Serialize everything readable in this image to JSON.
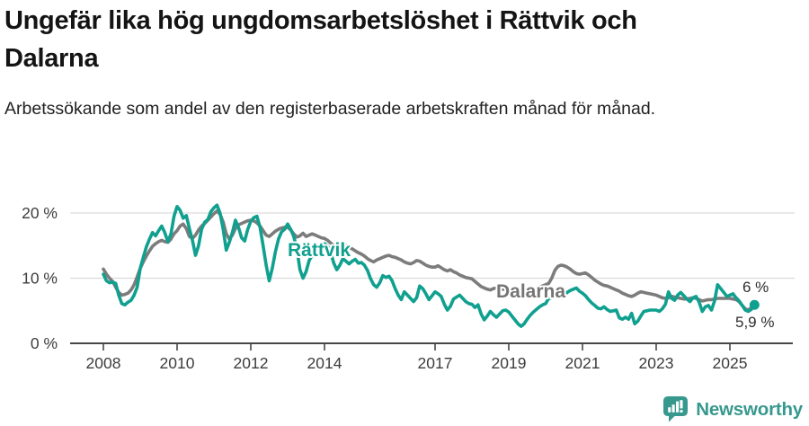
{
  "header": {
    "title_line1": "Ungefär lika hög ungdomsarbetslöshet i Rättvik och",
    "title_line2": "Dalarna",
    "subtitle": "Arbetssökande som andel av den registerbaserade arbetskraften månad för månad."
  },
  "chart_data": {
    "type": "line",
    "x_start_year": 2008,
    "x_step_months": 1,
    "x_end": "2025-09",
    "x_tick_years": [
      2008,
      2010,
      2012,
      2014,
      2017,
      2019,
      2021,
      2023,
      2025
    ],
    "y_ticks": [
      {
        "value": 0,
        "label": "0 %"
      },
      {
        "value": 10,
        "label": "10 %"
      },
      {
        "value": 20,
        "label": "20 %"
      }
    ],
    "ylim": [
      0,
      22.5
    ],
    "grid": "horizontal-only",
    "legend_position": "inline-labels",
    "series": [
      {
        "name": "Dalarna",
        "label": "Dalarna",
        "color": "#7c7c7c",
        "end_label": "6 %",
        "values": [
          11.4,
          10.6,
          10.0,
          9.5,
          8.6,
          7.8,
          7.4,
          7.5,
          7.7,
          8.2,
          9.0,
          10.2,
          11.5,
          12.5,
          13.4,
          14.2,
          14.9,
          15.3,
          15.6,
          15.8,
          15.6,
          15.5,
          16.0,
          16.8,
          17.3,
          18.0,
          18.3,
          17.6,
          16.4,
          16.1,
          16.6,
          17.4,
          18.0,
          18.4,
          18.9,
          19.4,
          19.9,
          20.3,
          19.8,
          18.6,
          16.8,
          16.0,
          16.6,
          17.6,
          18.2,
          18.4,
          18.6,
          18.8,
          18.9,
          18.8,
          18.5,
          18.0,
          17.3,
          16.6,
          16.4,
          16.8,
          17.2,
          17.5,
          17.7,
          17.8,
          17.8,
          17.4,
          16.8,
          16.3,
          16.5,
          16.9,
          16.4,
          16.6,
          16.8,
          16.6,
          16.4,
          16.2,
          16.1,
          15.8,
          15.4,
          15.0,
          14.8,
          15.0,
          15.2,
          15.0,
          14.7,
          14.5,
          14.2,
          13.9,
          13.7,
          13.4,
          13.0,
          12.7,
          12.5,
          12.8,
          13.0,
          13.2,
          13.4,
          13.5,
          13.3,
          13.2,
          13.0,
          12.8,
          12.5,
          12.3,
          12.2,
          12.4,
          12.7,
          12.6,
          12.3,
          12.0,
          11.8,
          11.7,
          11.7,
          11.9,
          11.6,
          11.3,
          11.1,
          11.3,
          11.0,
          10.8,
          10.5,
          10.3,
          10.1,
          10.0,
          9.9,
          9.5,
          9.1,
          8.7,
          8.5,
          8.3,
          8.2,
          8.4,
          8.5,
          8.4,
          8.3,
          8.3,
          8.2,
          8.0,
          7.8,
          7.7,
          7.6,
          7.8,
          8.0,
          8.1,
          8.2,
          8.4,
          8.6,
          8.8,
          9.0,
          9.2,
          10.0,
          11.2,
          11.8,
          12.0,
          11.9,
          11.7,
          11.4,
          11.0,
          10.7,
          10.6,
          10.7,
          10.8,
          10.5,
          10.1,
          9.7,
          9.4,
          9.1,
          8.9,
          8.8,
          8.6,
          8.4,
          8.2,
          8.0,
          7.7,
          7.5,
          7.3,
          7.2,
          7.4,
          7.7,
          7.9,
          7.8,
          7.7,
          7.6,
          7.5,
          7.4,
          7.2,
          7.0,
          6.9,
          7.0,
          7.2,
          7.1,
          7.0,
          6.9,
          6.8,
          6.8,
          6.9,
          7.0,
          6.9,
          6.7,
          6.5,
          6.6,
          6.7,
          6.7,
          6.8,
          6.9,
          6.9,
          6.9,
          6.9,
          6.9,
          6.8,
          6.7,
          6.4,
          5.8,
          5.3,
          5.1,
          5.5,
          6.0
        ]
      },
      {
        "name": "Rättvik",
        "label": "Rättvik",
        "color": "#10a08f",
        "end_label": "5,9 %",
        "end_dot": true,
        "dashed_segment": {
          "from_index": 146,
          "to_index": 150
        },
        "values": [
          10.6,
          9.6,
          9.3,
          9.4,
          9.2,
          7.4,
          6.1,
          5.9,
          6.3,
          6.6,
          7.4,
          8.6,
          11.5,
          13.2,
          14.8,
          16.0,
          17.0,
          16.5,
          17.3,
          18.0,
          17.0,
          15.6,
          16.8,
          19.5,
          21.0,
          20.4,
          19.2,
          19.6,
          17.6,
          15.8,
          13.5,
          15.0,
          17.5,
          18.6,
          19.0,
          20.2,
          20.8,
          21.2,
          20.0,
          17.5,
          14.3,
          15.5,
          17.0,
          18.9,
          17.8,
          16.2,
          15.7,
          17.5,
          18.7,
          19.3,
          19.5,
          17.8,
          15.0,
          12.0,
          9.6,
          11.5,
          14.0,
          16.0,
          17.1,
          17.5,
          18.3,
          17.5,
          16.4,
          14.5,
          11.3,
          10.0,
          11.0,
          12.7,
          13.5,
          14.2,
          14.8,
          15.2,
          15.3,
          15.0,
          14.0,
          12.3,
          11.3,
          12.0,
          13.0,
          12.6,
          12.2,
          12.6,
          12.9,
          12.3,
          12.4,
          12.0,
          11.2,
          9.9,
          9.0,
          8.6,
          9.3,
          10.4,
          10.1,
          10.3,
          9.6,
          8.4,
          7.4,
          6.7,
          7.9,
          7.4,
          6.9,
          6.4,
          7.0,
          8.8,
          8.4,
          7.6,
          6.7,
          7.3,
          7.9,
          7.6,
          7.2,
          6.0,
          5.1,
          5.7,
          6.8,
          7.1,
          7.4,
          6.9,
          6.4,
          6.1,
          6.0,
          5.5,
          5.9,
          4.5,
          3.6,
          4.2,
          4.9,
          4.4,
          4.0,
          4.5,
          5.0,
          5.1,
          4.8,
          4.2,
          3.6,
          3.0,
          2.6,
          3.0,
          3.7,
          4.3,
          4.8,
          5.2,
          5.6,
          5.9,
          6.1,
          6.9,
          7.0,
          7.1,
          7.0,
          7.1,
          7.3,
          7.8,
          8.1,
          8.3,
          8.5,
          8.0,
          7.7,
          7.3,
          6.7,
          6.2,
          5.8,
          5.4,
          5.3,
          5.6,
          5.2,
          4.9,
          5.0,
          5.1,
          3.9,
          3.7,
          4.0,
          3.7,
          4.6,
          3.0,
          3.4,
          4.2,
          4.9,
          5.0,
          5.1,
          5.1,
          5.1,
          4.9,
          5.3,
          6.0,
          7.9,
          6.9,
          6.6,
          7.4,
          7.8,
          7.3,
          6.8,
          6.4,
          7.0,
          7.2,
          6.3,
          4.9,
          5.6,
          5.8,
          5.1,
          6.5,
          9.0,
          8.4,
          7.8,
          7.2,
          7.4,
          7.6,
          7.0,
          6.5,
          5.8,
          5.1,
          4.9,
          5.2,
          5.9
        ]
      }
    ]
  },
  "footer": {
    "brand": "Newsworthy"
  }
}
